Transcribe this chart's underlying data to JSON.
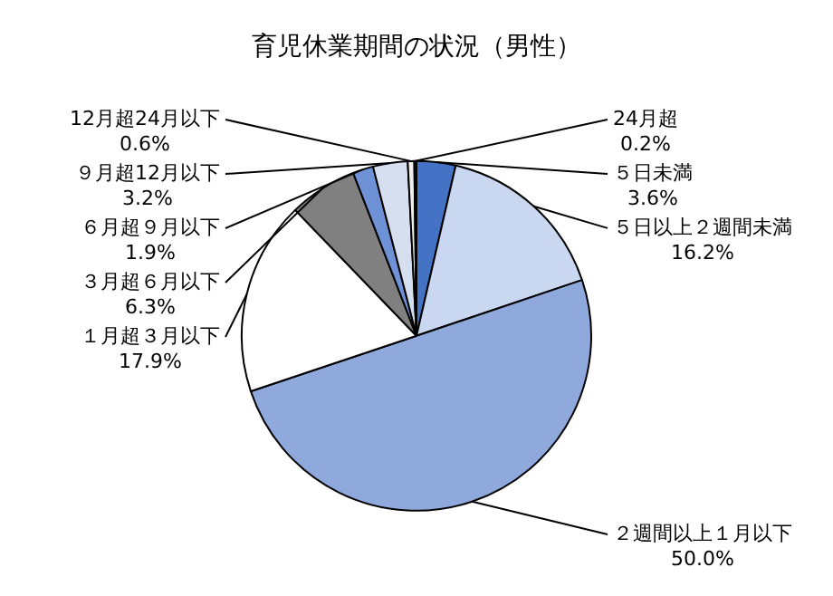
{
  "chart_data": {
    "type": "pie",
    "title": "育児休業期間の状況（男性）",
    "categories": [
      "５日未満",
      "５日以上２週間未満",
      "２週間以上１月以下",
      "１月超３月以下",
      "３月超６月以下",
      "６月超９月以下",
      "９月超12月以下",
      "12月超24月以下",
      "24月超"
    ],
    "values": [
      3.6,
      16.2,
      50.0,
      17.9,
      6.3,
      1.9,
      3.2,
      0.6,
      0.2
    ],
    "colors": [
      "#4472c4",
      "#c9d7f0",
      "#8fa9dd",
      "#ffffff",
      "#808080",
      "#6f91d6",
      "#d6dff0",
      "#eeeeee",
      "#1a1a1a"
    ],
    "value_labels": [
      "3.6%",
      "16.2%",
      "50.0%",
      "17.9%",
      "6.3%",
      "1.9%",
      "3.2%",
      "0.6%",
      "0.2%"
    ],
    "legend": false
  }
}
